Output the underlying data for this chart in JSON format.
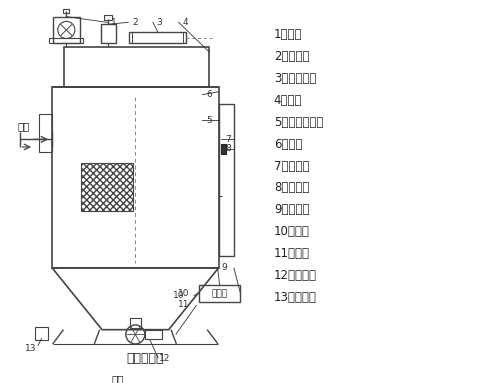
{
  "title": "原理示意图",
  "legend_items": [
    "1、风机",
    "2、控制阀",
    "3、低压气包",
    "4、上筱",
    "5、滤袋及笼骨",
    "6、花板",
    "7、净气筱",
    "8、检修门",
    "9、控制仪",
    "10、灰斗",
    "11、支腿",
    "12、卦料器",
    "13、检查孔"
  ],
  "label_jinfeng": "进风",
  "label_xuhui": "卦灰",
  "label_zhizhi": "控制仪",
  "bg_color": "#ffffff",
  "line_color": "#444444",
  "text_color": "#222222"
}
